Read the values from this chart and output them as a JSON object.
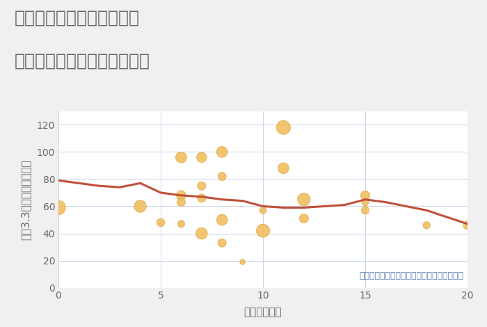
{
  "title_line1": "三重県四日市市富州原町の",
  "title_line2": "駅距離別中古マンション価格",
  "xlabel": "駅距離（分）",
  "ylabel": "坪（3.3㎡）単価（万円）",
  "xlim": [
    0,
    20
  ],
  "ylim": [
    0,
    130
  ],
  "xticks": [
    0,
    5,
    10,
    15,
    20
  ],
  "yticks": [
    0,
    20,
    40,
    60,
    80,
    100,
    120
  ],
  "background_color": "#f0f0f0",
  "plot_bg_color": "#ffffff",
  "grid_color": "#c8d4e8",
  "bubble_color": "#f0bc5a",
  "bubble_edge_color": "#d8a040",
  "line_color": "#c0503a",
  "annotation": "円の大きさは、取引のあった物件面積を示す",
  "annotation_color": "#6080b8",
  "scatter_x": [
    0,
    4,
    5,
    6,
    6,
    6,
    6,
    7,
    7,
    7,
    7,
    8,
    8,
    8,
    8,
    9,
    10,
    10,
    11,
    11,
    12,
    12,
    15,
    15,
    15,
    18,
    20
  ],
  "scatter_y": [
    59,
    60,
    48,
    96,
    68,
    63,
    47,
    96,
    75,
    66,
    40,
    100,
    82,
    50,
    33,
    19,
    57,
    42,
    118,
    88,
    65,
    51,
    68,
    63,
    57,
    46,
    46
  ],
  "scatter_size": [
    220,
    160,
    70,
    130,
    100,
    75,
    55,
    110,
    75,
    75,
    145,
    130,
    75,
    130,
    75,
    30,
    50,
    190,
    210,
    130,
    175,
    90,
    90,
    55,
    65,
    55,
    80
  ],
  "trend_x": [
    0,
    1,
    2,
    3,
    4,
    5,
    6,
    7,
    8,
    9,
    10,
    11,
    12,
    13,
    14,
    15,
    16,
    17,
    18,
    19,
    20
  ],
  "trend_y": [
    79,
    77,
    75,
    74,
    77,
    70,
    68,
    67,
    65,
    64,
    60,
    59,
    59,
    60,
    61,
    65,
    63,
    60,
    57,
    52,
    47
  ],
  "title_color": "#666666",
  "title_fontsize": 18,
  "label_fontsize": 11,
  "tick_fontsize": 10,
  "line_width": 2.2,
  "annotation_fontsize": 9
}
